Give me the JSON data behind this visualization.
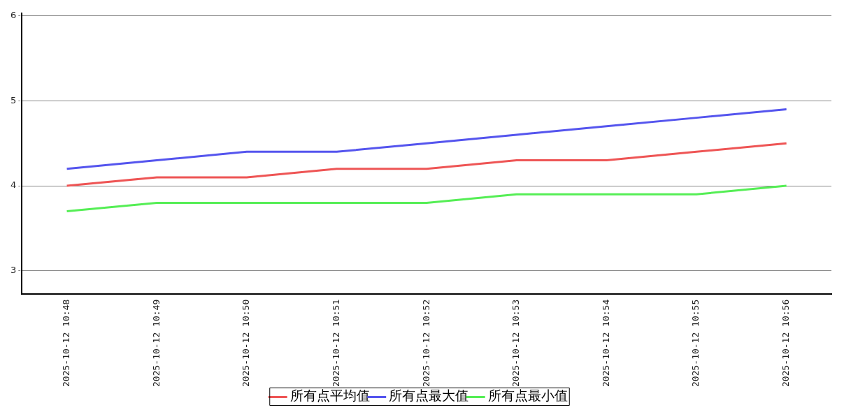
{
  "chart_data": {
    "type": "line",
    "categories": [
      "2025-10-12 10:48",
      "2025-10-12 10:49",
      "2025-10-12 10:50",
      "2025-10-12 10:51",
      "2025-10-12 10:52",
      "2025-10-12 10:53",
      "2025-10-12 10:54",
      "2025-10-12 10:55",
      "2025-10-12 10:56"
    ],
    "series": [
      {
        "name": "所有点平均值",
        "color": "#ee5555",
        "values": [
          4.0,
          4.1,
          4.1,
          4.2,
          4.2,
          4.3,
          4.3,
          4.4,
          4.5
        ]
      },
      {
        "name": "所有点最大值",
        "color": "#5555ee",
        "values": [
          4.2,
          4.3,
          4.4,
          4.4,
          4.5,
          4.6,
          4.7,
          4.8,
          4.9
        ]
      },
      {
        "name": "所有点最小值",
        "color": "#55ee55",
        "values": [
          3.7,
          3.8,
          3.8,
          3.8,
          3.8,
          3.9,
          3.9,
          3.9,
          4.0
        ]
      }
    ],
    "ylim": [
      2.73,
      6.03
    ],
    "yticks": [
      3,
      4,
      5,
      6
    ],
    "grid": "y",
    "legend": "bottom",
    "marker": "none",
    "line_style": "solid"
  }
}
